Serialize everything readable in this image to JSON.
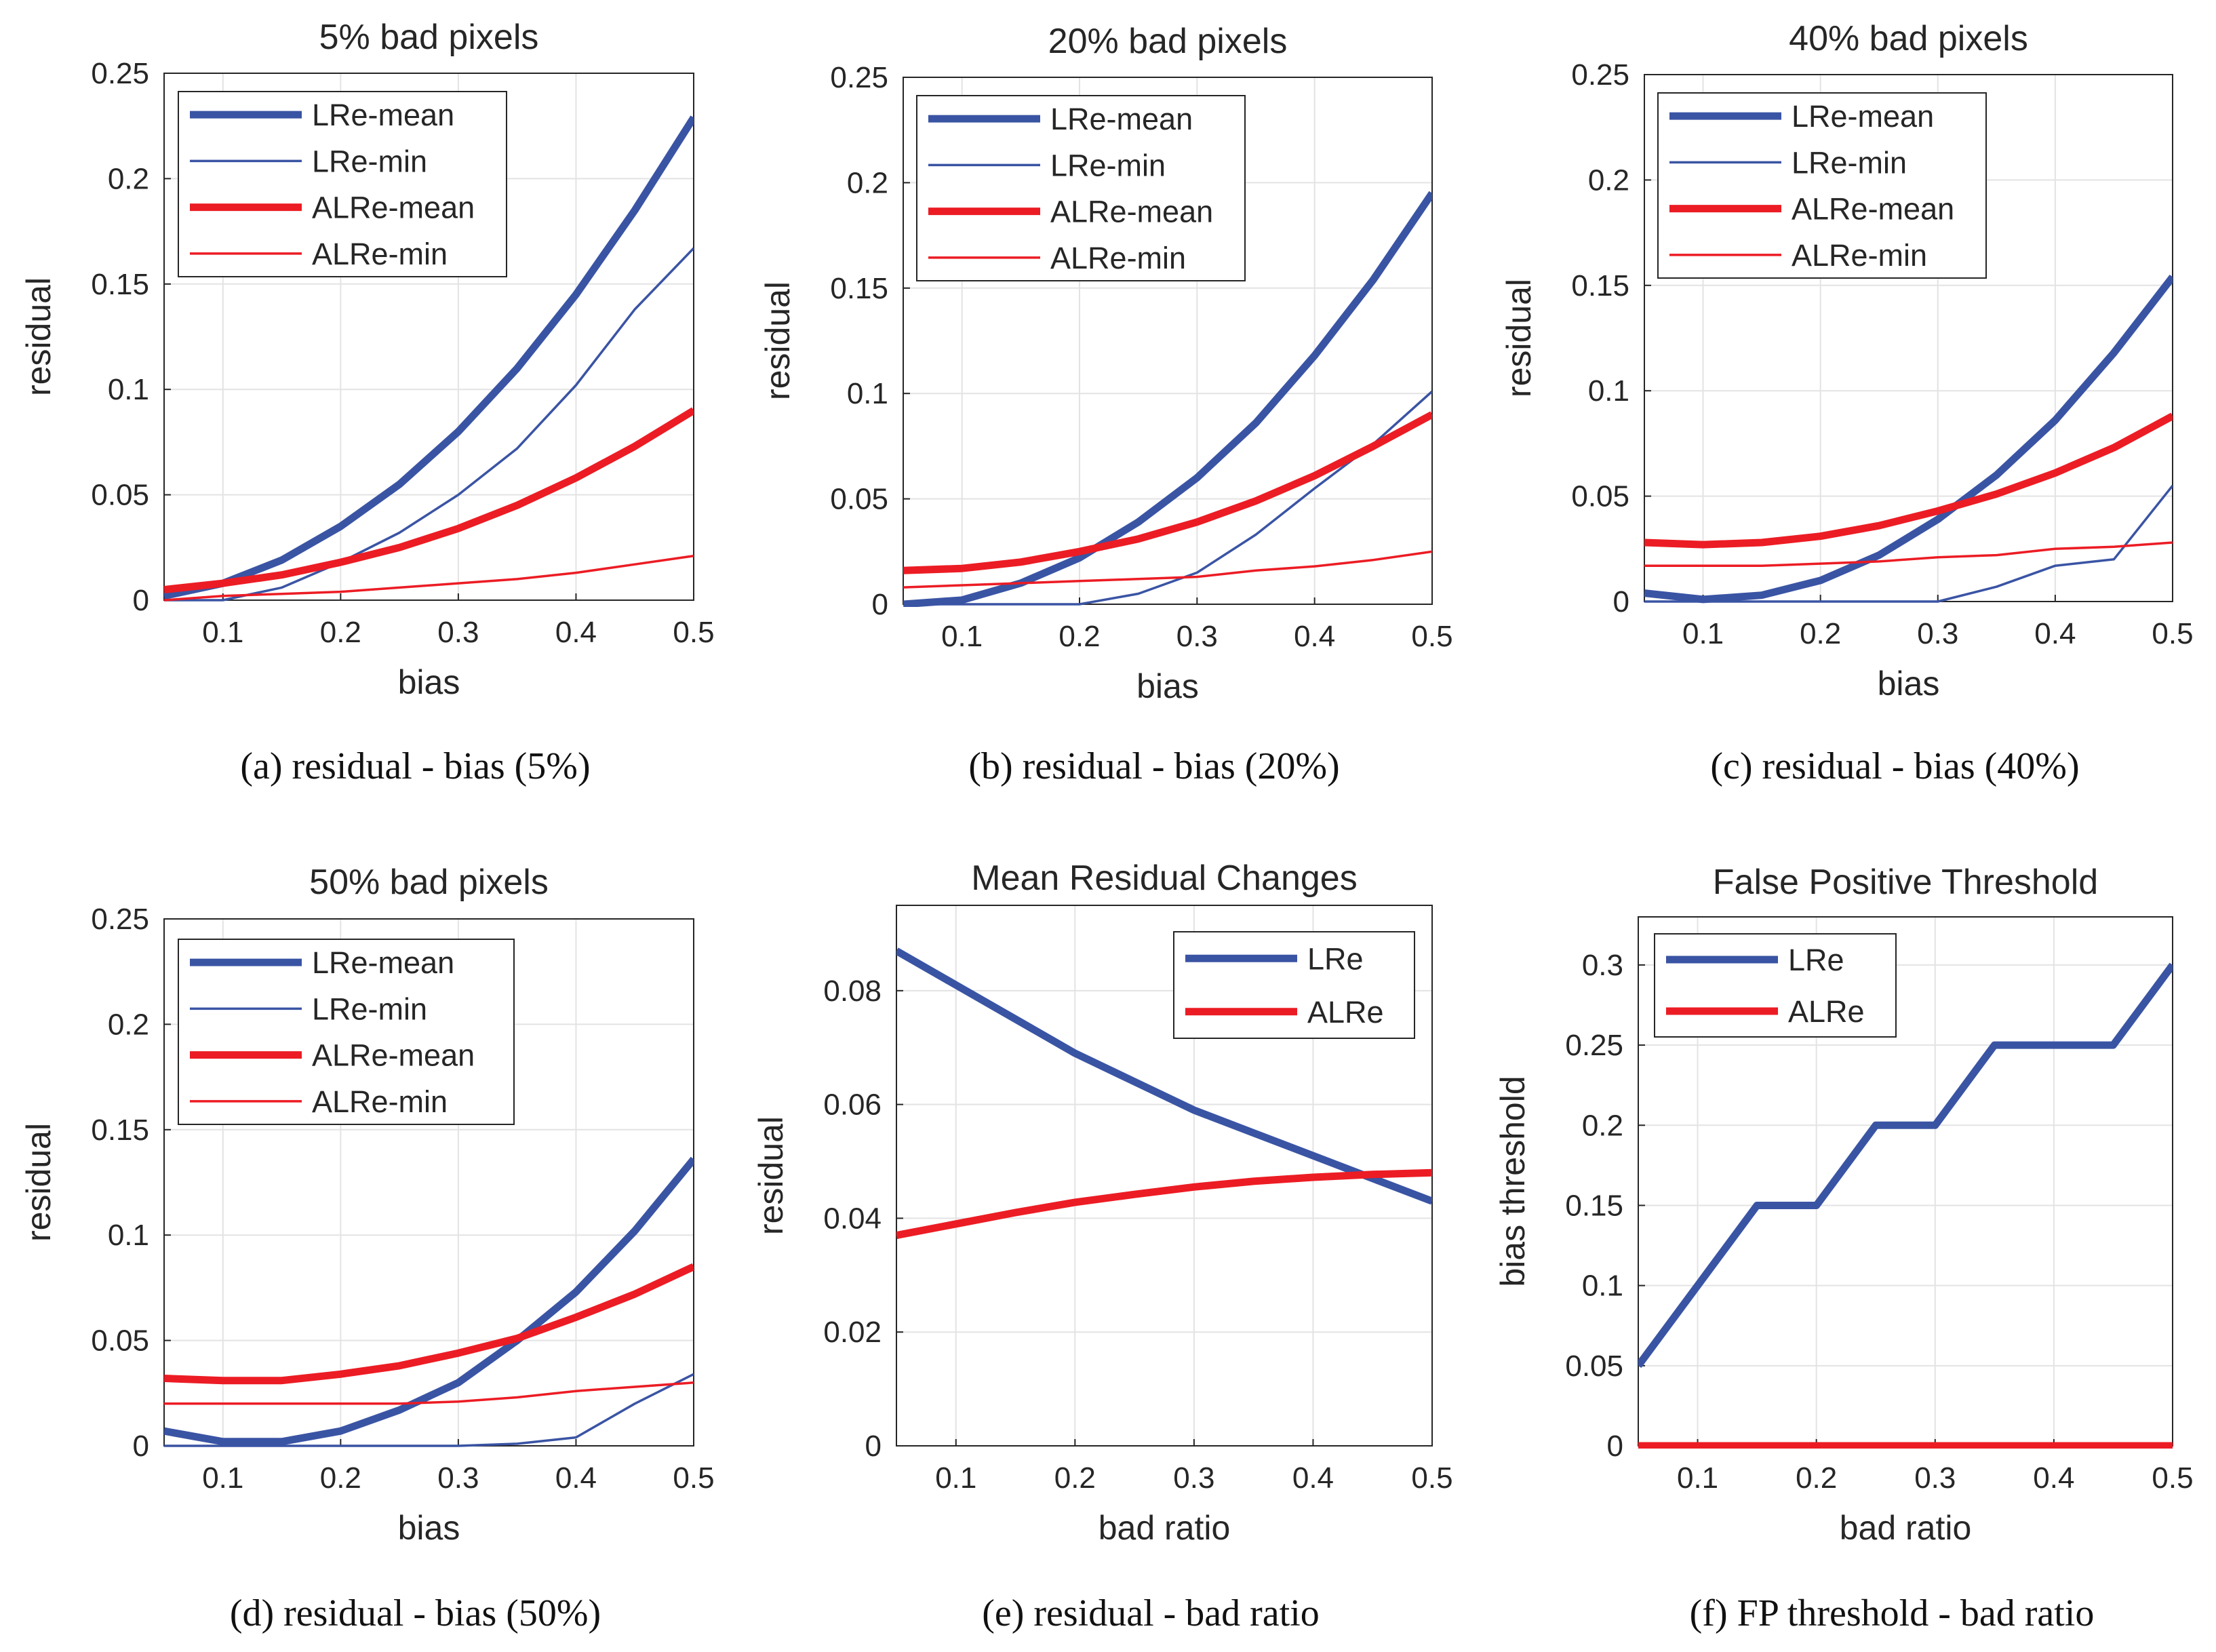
{
  "colors": {
    "LRe": "#3a54a4",
    "ALRe": "#ec1c24",
    "grid": "#e3e3e3",
    "axis": "#262626"
  },
  "chart_data": [
    {
      "type": "line",
      "title": "5% bad pixels",
      "xlabel": "bias",
      "ylabel": "residual",
      "caption": "(a)  residual - bias (5%)",
      "xlim": [
        0.05,
        0.5
      ],
      "ylim": [
        0,
        0.25
      ],
      "xticks": [
        "0.1",
        "0.2",
        "0.3",
        "0.4",
        "0.5"
      ],
      "yticks": [
        "0",
        "0.05",
        "0.1",
        "0.15",
        "0.2",
        "0.25"
      ],
      "legend_position": "top-left",
      "x": [
        0.05,
        0.1,
        0.15,
        0.2,
        0.25,
        0.3,
        0.35,
        0.4,
        0.45,
        0.5
      ],
      "series": [
        {
          "name": "LRe-mean",
          "color": "LRe",
          "weight": "thick",
          "values": [
            0.002,
            0.008,
            0.019,
            0.035,
            0.055,
            0.08,
            0.11,
            0.145,
            0.185,
            0.229
          ]
        },
        {
          "name": "LRe-min",
          "color": "LRe",
          "weight": "thin",
          "values": [
            0.0,
            0.0,
            0.006,
            0.018,
            0.032,
            0.05,
            0.072,
            0.102,
            0.138,
            0.167
          ]
        },
        {
          "name": "ALRe-mean",
          "color": "ALRe",
          "weight": "thick",
          "values": [
            0.005,
            0.008,
            0.012,
            0.018,
            0.025,
            0.034,
            0.045,
            0.058,
            0.073,
            0.09
          ]
        },
        {
          "name": "ALRe-min",
          "color": "ALRe",
          "weight": "thin",
          "values": [
            0.0,
            0.002,
            0.003,
            0.004,
            0.006,
            0.008,
            0.01,
            0.013,
            0.017,
            0.021
          ]
        }
      ]
    },
    {
      "type": "line",
      "title": "20% bad pixels",
      "xlabel": "bias",
      "ylabel": "residual",
      "caption": "(b)  residual - bias (20%)",
      "xlim": [
        0.05,
        0.5
      ],
      "ylim": [
        0,
        0.25
      ],
      "xticks": [
        "0.1",
        "0.2",
        "0.3",
        "0.4",
        "0.5"
      ],
      "yticks": [
        "0",
        "0.05",
        "0.1",
        "0.15",
        "0.2",
        "0.25"
      ],
      "legend_position": "top-left",
      "x": [
        0.05,
        0.1,
        0.15,
        0.2,
        0.25,
        0.3,
        0.35,
        0.4,
        0.45,
        0.5
      ],
      "series": [
        {
          "name": "LRe-mean",
          "color": "LRe",
          "weight": "thick",
          "values": [
            0.0,
            0.002,
            0.01,
            0.022,
            0.039,
            0.06,
            0.086,
            0.118,
            0.154,
            0.195
          ]
        },
        {
          "name": "LRe-min",
          "color": "LRe",
          "weight": "thin",
          "values": [
            0.0,
            0.0,
            0.0,
            0.0,
            0.005,
            0.015,
            0.033,
            0.055,
            0.076,
            0.101
          ]
        },
        {
          "name": "ALRe-mean",
          "color": "ALRe",
          "weight": "thick",
          "values": [
            0.016,
            0.017,
            0.02,
            0.025,
            0.031,
            0.039,
            0.049,
            0.061,
            0.075,
            0.09
          ]
        },
        {
          "name": "ALRe-min",
          "color": "ALRe",
          "weight": "thin",
          "values": [
            0.008,
            0.009,
            0.01,
            0.011,
            0.012,
            0.013,
            0.016,
            0.018,
            0.021,
            0.025
          ]
        }
      ]
    },
    {
      "type": "line",
      "title": "40% bad pixels",
      "xlabel": "bias",
      "ylabel": "residual",
      "caption": "(c)  residual - bias (40%)",
      "xlim": [
        0.05,
        0.5
      ],
      "ylim": [
        0,
        0.25
      ],
      "xticks": [
        "0.1",
        "0.2",
        "0.3",
        "0.4",
        "0.5"
      ],
      "yticks": [
        "0",
        "0.05",
        "0.1",
        "0.15",
        "0.2",
        "0.25"
      ],
      "legend_position": "top-left",
      "x": [
        0.05,
        0.1,
        0.15,
        0.2,
        0.25,
        0.3,
        0.35,
        0.4,
        0.45,
        0.5
      ],
      "series": [
        {
          "name": "LRe-mean",
          "color": "LRe",
          "weight": "thick",
          "values": [
            0.004,
            0.001,
            0.003,
            0.01,
            0.022,
            0.039,
            0.06,
            0.086,
            0.118,
            0.154
          ]
        },
        {
          "name": "LRe-min",
          "color": "LRe",
          "weight": "thin",
          "values": [
            0.0,
            0.0,
            0.0,
            0.0,
            0.0,
            0.0,
            0.007,
            0.017,
            0.02,
            0.055
          ]
        },
        {
          "name": "ALRe-mean",
          "color": "ALRe",
          "weight": "thick",
          "values": [
            0.028,
            0.027,
            0.028,
            0.031,
            0.036,
            0.043,
            0.051,
            0.061,
            0.073,
            0.088
          ]
        },
        {
          "name": "ALRe-min",
          "color": "ALRe",
          "weight": "thin",
          "values": [
            0.017,
            0.017,
            0.017,
            0.018,
            0.019,
            0.021,
            0.022,
            0.025,
            0.026,
            0.028
          ]
        }
      ]
    },
    {
      "type": "line",
      "title": "50% bad pixels",
      "xlabel": "bias",
      "ylabel": "residual",
      "caption": "(d)  residual - bias (50%)",
      "xlim": [
        0.05,
        0.5
      ],
      "ylim": [
        0,
        0.25
      ],
      "xticks": [
        "0.1",
        "0.2",
        "0.3",
        "0.4",
        "0.5"
      ],
      "yticks": [
        "0",
        "0.05",
        "0.1",
        "0.15",
        "0.2",
        "0.25"
      ],
      "legend_position": "top-left",
      "x": [
        0.05,
        0.1,
        0.15,
        0.2,
        0.25,
        0.3,
        0.35,
        0.4,
        0.45,
        0.5
      ],
      "series": [
        {
          "name": "LRe-mean",
          "color": "LRe",
          "weight": "thick",
          "values": [
            0.007,
            0.002,
            0.002,
            0.007,
            0.017,
            0.03,
            0.05,
            0.073,
            0.102,
            0.136
          ]
        },
        {
          "name": "LRe-min",
          "color": "LRe",
          "weight": "thin",
          "values": [
            0.0,
            0.0,
            0.0,
            0.0,
            0.0,
            0.0,
            0.001,
            0.004,
            0.02,
            0.034
          ]
        },
        {
          "name": "ALRe-mean",
          "color": "ALRe",
          "weight": "thick",
          "values": [
            0.032,
            0.031,
            0.031,
            0.034,
            0.038,
            0.044,
            0.051,
            0.061,
            0.072,
            0.085
          ]
        },
        {
          "name": "ALRe-min",
          "color": "ALRe",
          "weight": "thin",
          "values": [
            0.02,
            0.02,
            0.02,
            0.02,
            0.02,
            0.021,
            0.023,
            0.026,
            0.028,
            0.03
          ]
        }
      ]
    },
    {
      "type": "line",
      "title": "Mean Residual Changes",
      "xlabel": "bad ratio",
      "ylabel": "residual",
      "caption": "(e)  residual - bad ratio",
      "xlim": [
        0.05,
        0.5
      ],
      "ylim": [
        0,
        0.095
      ],
      "xticks": [
        "0.1",
        "0.2",
        "0.3",
        "0.4",
        "0.5"
      ],
      "yticks": [
        "0",
        "0.02",
        "0.04",
        "0.06",
        "0.08"
      ],
      "legend_position": "top-right",
      "x": [
        0.05,
        0.1,
        0.15,
        0.2,
        0.25,
        0.3,
        0.35,
        0.4,
        0.45,
        0.5
      ],
      "series": [
        {
          "name": "LRe",
          "color": "LRe",
          "weight": "thick",
          "values": [
            0.087,
            0.081,
            0.075,
            0.069,
            0.064,
            0.059,
            0.055,
            0.051,
            0.047,
            0.043
          ]
        },
        {
          "name": "ALRe",
          "color": "ALRe",
          "weight": "thick",
          "values": [
            0.037,
            0.039,
            0.041,
            0.0428,
            0.0442,
            0.0455,
            0.0465,
            0.0472,
            0.0477,
            0.048
          ]
        }
      ]
    },
    {
      "type": "line",
      "title": "False Positive Threshold",
      "xlabel": "bad ratio",
      "ylabel": "bias threshold",
      "caption": "(f)  FP threshold - bad ratio",
      "xlim": [
        0.05,
        0.5
      ],
      "ylim": [
        0,
        0.33
      ],
      "xticks": [
        "0.1",
        "0.2",
        "0.3",
        "0.4",
        "0.5"
      ],
      "yticks": [
        "0",
        "0.05",
        "0.1",
        "0.15",
        "0.2",
        "0.25",
        "0.3"
      ],
      "legend_position": "top-left",
      "x": [
        0.05,
        0.1,
        0.15,
        0.2,
        0.25,
        0.3,
        0.35,
        0.4,
        0.45,
        0.5
      ],
      "series": [
        {
          "name": "LRe",
          "color": "LRe",
          "weight": "thick",
          "values": [
            0.05,
            0.1,
            0.15,
            0.15,
            0.2,
            0.2,
            0.25,
            0.25,
            0.25,
            0.3
          ]
        },
        {
          "name": "ALRe",
          "color": "ALRe",
          "weight": "thick",
          "values": [
            0,
            0,
            0,
            0,
            0,
            0,
            0,
            0,
            0,
            0
          ]
        }
      ]
    }
  ]
}
